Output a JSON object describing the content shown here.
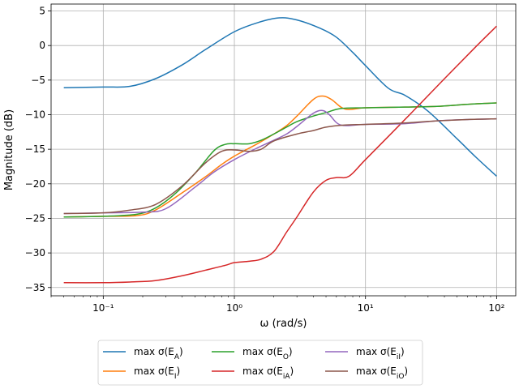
{
  "chart_data": {
    "type": "line",
    "x_scale": "log",
    "xlim": [
      0.04,
      140
    ],
    "ylim": [
      -36.2,
      6.0
    ],
    "grid": true,
    "xlabel": "ω (rad/s)",
    "ylabel": "Magnitude (dB)",
    "legend_position": "bottom-center-outside",
    "x_ticks": [
      {
        "value": 0.1,
        "label": "10⁻¹"
      },
      {
        "value": 1,
        "label": "10⁰"
      },
      {
        "value": 10,
        "label": "10¹"
      },
      {
        "value": 100,
        "label": "10²"
      }
    ],
    "y_ticks": [
      {
        "value": 5,
        "label": "5"
      },
      {
        "value": 0,
        "label": "0"
      },
      {
        "value": -5,
        "label": "−5"
      },
      {
        "value": -10,
        "label": "−10"
      },
      {
        "value": -15,
        "label": "−15"
      },
      {
        "value": -20,
        "label": "−20"
      },
      {
        "value": -25,
        "label": "−25"
      },
      {
        "value": -30,
        "label": "−30"
      },
      {
        "value": -35,
        "label": "−35"
      }
    ],
    "series": [
      {
        "name": "max σ(E_A)",
        "color": "#1f77b4",
        "points": [
          [
            0.05,
            -6.1
          ],
          [
            0.1,
            -6.0
          ],
          [
            0.16,
            -5.9
          ],
          [
            0.25,
            -4.8
          ],
          [
            0.4,
            -2.8
          ],
          [
            0.6,
            -0.6
          ],
          [
            1.0,
            2.0
          ],
          [
            1.5,
            3.3
          ],
          [
            2.2,
            4.0
          ],
          [
            3.0,
            3.7
          ],
          [
            4.5,
            2.5
          ],
          [
            6.0,
            1.2
          ],
          [
            8.0,
            -1.0
          ],
          [
            10.0,
            -2.9
          ],
          [
            15.0,
            -6.2
          ],
          [
            20.0,
            -7.2
          ],
          [
            30.0,
            -9.5
          ],
          [
            50.0,
            -13.5
          ],
          [
            70.0,
            -16.2
          ],
          [
            100.0,
            -18.9
          ]
        ]
      },
      {
        "name": "max σ(E_I)",
        "color": "#ff7f0e",
        "points": [
          [
            0.05,
            -24.8
          ],
          [
            0.1,
            -24.7
          ],
          [
            0.18,
            -24.6
          ],
          [
            0.25,
            -23.8
          ],
          [
            0.4,
            -21.3
          ],
          [
            0.6,
            -19.0
          ],
          [
            0.8,
            -17.2
          ],
          [
            1.0,
            -16.0
          ],
          [
            1.5,
            -14.2
          ],
          [
            2.0,
            -12.8
          ],
          [
            2.5,
            -11.6
          ],
          [
            3.0,
            -10.2
          ],
          [
            4.0,
            -7.8
          ],
          [
            4.7,
            -7.3
          ],
          [
            5.5,
            -7.8
          ],
          [
            7.0,
            -9.2
          ],
          [
            10.0,
            -9.0
          ],
          [
            20.0,
            -8.9
          ],
          [
            35.0,
            -8.8
          ],
          [
            60.0,
            -8.5
          ],
          [
            100.0,
            -8.3
          ]
        ]
      },
      {
        "name": "max σ(E_O)",
        "color": "#2ca02c",
        "points": [
          [
            0.05,
            -24.8
          ],
          [
            0.1,
            -24.7
          ],
          [
            0.18,
            -24.4
          ],
          [
            0.25,
            -23.5
          ],
          [
            0.35,
            -21.5
          ],
          [
            0.5,
            -18.5
          ],
          [
            0.7,
            -15.2
          ],
          [
            0.85,
            -14.3
          ],
          [
            1.0,
            -14.2
          ],
          [
            1.3,
            -14.2
          ],
          [
            1.6,
            -13.7
          ],
          [
            2.0,
            -12.8
          ],
          [
            2.5,
            -11.8
          ],
          [
            3.0,
            -11.0
          ],
          [
            4.0,
            -10.2
          ],
          [
            5.0,
            -9.7
          ],
          [
            6.5,
            -9.1
          ],
          [
            10.0,
            -9.0
          ],
          [
            20.0,
            -8.9
          ],
          [
            35.0,
            -8.8
          ],
          [
            60.0,
            -8.5
          ],
          [
            100.0,
            -8.3
          ]
        ]
      },
      {
        "name": "max σ(E_IA)",
        "color": "#d62728",
        "points": [
          [
            0.05,
            -34.3
          ],
          [
            0.1,
            -34.3
          ],
          [
            0.16,
            -34.2
          ],
          [
            0.25,
            -34.0
          ],
          [
            0.4,
            -33.3
          ],
          [
            0.6,
            -32.5
          ],
          [
            0.85,
            -31.8
          ],
          [
            1.0,
            -31.4
          ],
          [
            1.3,
            -31.2
          ],
          [
            1.6,
            -30.9
          ],
          [
            2.0,
            -29.8
          ],
          [
            2.5,
            -27.0
          ],
          [
            3.0,
            -24.8
          ],
          [
            4.0,
            -21.2
          ],
          [
            5.0,
            -19.5
          ],
          [
            6.0,
            -19.1
          ],
          [
            7.5,
            -18.9
          ],
          [
            10.0,
            -16.5
          ],
          [
            20.0,
            -10.7
          ],
          [
            40.0,
            -4.8
          ],
          [
            70.0,
            -0.1
          ],
          [
            100.0,
            2.8
          ]
        ]
      },
      {
        "name": "max σ(E_iI)",
        "color": "#9467bd",
        "points": [
          [
            0.05,
            -24.3
          ],
          [
            0.1,
            -24.2
          ],
          [
            0.2,
            -24.1
          ],
          [
            0.3,
            -23.6
          ],
          [
            0.5,
            -20.5
          ],
          [
            0.7,
            -18.3
          ],
          [
            1.0,
            -16.5
          ],
          [
            1.5,
            -14.8
          ],
          [
            2.0,
            -13.7
          ],
          [
            2.5,
            -12.8
          ],
          [
            3.0,
            -11.7
          ],
          [
            4.0,
            -9.8
          ],
          [
            4.7,
            -9.4
          ],
          [
            5.3,
            -10.0
          ],
          [
            6.5,
            -11.5
          ],
          [
            10.0,
            -11.4
          ],
          [
            20.0,
            -11.3
          ],
          [
            35.0,
            -10.9
          ],
          [
            60.0,
            -10.7
          ],
          [
            100.0,
            -10.6
          ]
        ]
      },
      {
        "name": "max σ(E_iO)",
        "color": "#8c564b",
        "points": [
          [
            0.05,
            -24.3
          ],
          [
            0.1,
            -24.2
          ],
          [
            0.16,
            -23.8
          ],
          [
            0.25,
            -23.0
          ],
          [
            0.4,
            -20.3
          ],
          [
            0.6,
            -17.0
          ],
          [
            0.8,
            -15.3
          ],
          [
            1.0,
            -15.1
          ],
          [
            1.3,
            -15.3
          ],
          [
            1.6,
            -15.0
          ],
          [
            2.0,
            -13.8
          ],
          [
            3.0,
            -12.8
          ],
          [
            4.0,
            -12.3
          ],
          [
            5.0,
            -11.8
          ],
          [
            7.0,
            -11.5
          ],
          [
            10.0,
            -11.4
          ],
          [
            20.0,
            -11.2
          ],
          [
            35.0,
            -10.9
          ],
          [
            60.0,
            -10.7
          ],
          [
            100.0,
            -10.6
          ]
        ]
      }
    ]
  },
  "legend": [
    {
      "base": "max σ(E",
      "sub": "A",
      "tail": ")",
      "color": "#1f77b4"
    },
    {
      "base": "max σ(E",
      "sub": "I",
      "tail": ")",
      "color": "#ff7f0e"
    },
    {
      "base": "max σ(E",
      "sub": "O",
      "tail": ")",
      "color": "#2ca02c"
    },
    {
      "base": "max σ(E",
      "sub": "iA",
      "tail": ")",
      "color": "#d62728"
    },
    {
      "base": "max σ(E",
      "sub": "iI",
      "tail": ")",
      "color": "#9467bd"
    },
    {
      "base": "max σ(E",
      "sub": "iO",
      "tail": ")",
      "color": "#8c564b"
    }
  ]
}
